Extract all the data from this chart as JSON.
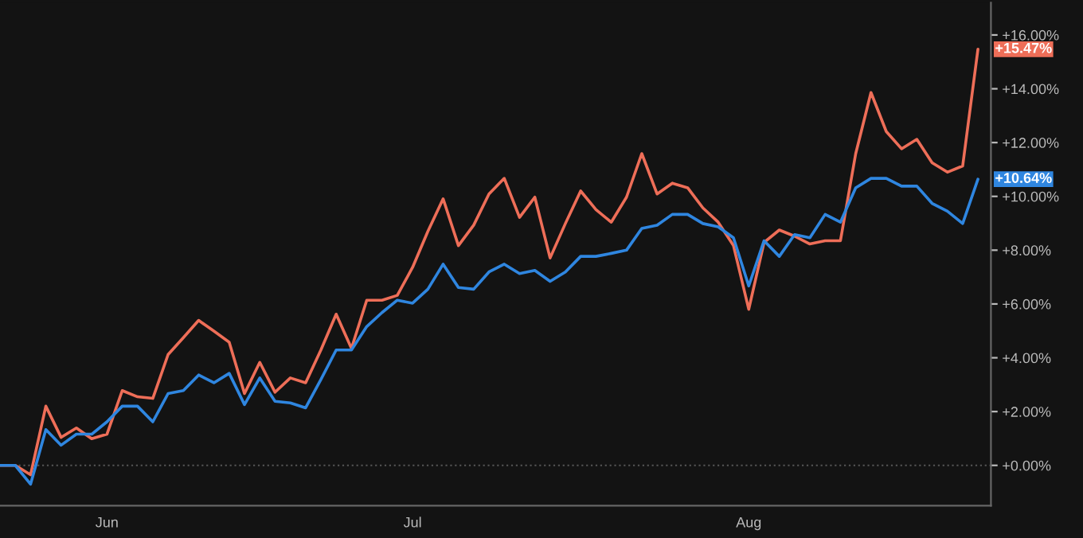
{
  "chart_data": {
    "type": "line",
    "categories": [
      null,
      null,
      null,
      null,
      null,
      null,
      null,
      "Jun",
      null,
      null,
      null,
      null,
      null,
      null,
      null,
      null,
      null,
      null,
      null,
      null,
      null,
      null,
      null,
      null,
      null,
      null,
      null,
      "Jul",
      null,
      null,
      null,
      null,
      null,
      null,
      null,
      null,
      null,
      null,
      null,
      null,
      null,
      null,
      null,
      null,
      null,
      null,
      null,
      null,
      null,
      "Aug",
      null,
      null,
      null,
      null,
      null,
      null,
      null,
      null,
      null,
      null,
      null,
      null,
      null,
      null,
      null
    ],
    "series": [
      {
        "color": "#ee6e58",
        "values": [
          0.0,
          0.0,
          -0.35,
          2.2,
          1.04,
          1.39,
          0.99,
          1.16,
          2.78,
          2.55,
          2.49,
          4.12,
          4.75,
          5.39,
          4.99,
          4.58,
          2.67,
          3.83,
          2.72,
          3.25,
          3.07,
          4.29,
          5.62,
          4.35,
          6.14,
          6.14,
          6.32,
          7.36,
          8.7,
          9.91,
          8.17,
          8.93,
          10.09,
          10.67,
          9.22,
          9.97,
          7.71,
          8.99,
          10.2,
          9.51,
          9.04,
          9.97,
          11.59,
          10.09,
          10.49,
          10.32,
          9.57,
          9.04,
          8.17,
          5.8,
          8.29,
          8.75,
          8.52,
          8.23,
          8.35,
          8.35,
          11.59,
          13.86,
          12.41,
          11.77,
          12.12,
          11.25,
          10.9,
          11.13,
          15.47
        ],
        "value_labels": [
          null,
          null,
          null,
          null,
          null,
          null,
          null,
          null,
          null,
          null,
          null,
          null,
          null,
          null,
          null,
          null,
          null,
          null,
          null,
          null,
          null,
          null,
          null,
          null,
          null,
          null,
          null,
          null,
          null,
          null,
          null,
          null,
          null,
          null,
          null,
          null,
          null,
          null,
          null,
          null,
          null,
          null,
          null,
          null,
          null,
          null,
          null,
          null,
          null,
          null,
          null,
          null,
          null,
          null,
          null,
          null,
          null,
          null,
          null,
          null,
          null,
          null,
          null,
          null,
          "+15.47%"
        ]
      },
      {
        "color": "#2f86e0",
        "values": [
          0.0,
          0.0,
          -0.7,
          1.33,
          0.75,
          1.16,
          1.16,
          1.62,
          2.2,
          2.2,
          1.62,
          2.67,
          2.78,
          3.36,
          3.07,
          3.42,
          2.26,
          3.25,
          2.38,
          2.32,
          2.14,
          3.19,
          4.29,
          4.29,
          5.16,
          5.68,
          6.14,
          6.03,
          6.55,
          7.48,
          6.61,
          6.55,
          7.19,
          7.48,
          7.13,
          7.25,
          6.84,
          7.19,
          7.77,
          7.77,
          7.88,
          8.0,
          8.81,
          8.93,
          9.33,
          9.33,
          8.99,
          8.87,
          8.46,
          6.67,
          8.35,
          7.77,
          8.58,
          8.46,
          9.33,
          9.04,
          10.32,
          10.67,
          10.67,
          10.38,
          10.38,
          9.74,
          9.45,
          8.99,
          10.64
        ],
        "value_labels": [
          null,
          null,
          null,
          null,
          null,
          null,
          null,
          null,
          null,
          null,
          null,
          null,
          null,
          null,
          null,
          null,
          null,
          null,
          null,
          null,
          null,
          null,
          null,
          null,
          null,
          null,
          null,
          null,
          null,
          null,
          null,
          null,
          null,
          null,
          null,
          null,
          null,
          null,
          null,
          null,
          null,
          null,
          null,
          null,
          null,
          null,
          null,
          null,
          null,
          null,
          null,
          null,
          null,
          null,
          null,
          null,
          null,
          null,
          null,
          null,
          null,
          null,
          null,
          null,
          "+10.64%"
        ]
      }
    ],
    "ylim": [
      -1.5,
      17.2
    ],
    "yticks": [
      {
        "value": 0,
        "label": "+0.00%"
      },
      {
        "value": 2,
        "label": "+2.00%"
      },
      {
        "value": 4,
        "label": "+4.00%"
      },
      {
        "value": 6,
        "label": "+6.00%"
      },
      {
        "value": 8,
        "label": "+8.00%"
      },
      {
        "value": 10,
        "label": "+10.00%"
      },
      {
        "value": 12,
        "label": "+12.00%"
      },
      {
        "value": 14,
        "label": "+14.00%"
      },
      {
        "value": 16,
        "label": "+16.00%"
      }
    ],
    "ref_lines": [
      {
        "axis": "y",
        "value": 0,
        "label": null,
        "color": "#555555",
        "line_style": "dotted"
      }
    ],
    "grid": false,
    "legend": false,
    "marker": "none",
    "line_style": "solid"
  }
}
